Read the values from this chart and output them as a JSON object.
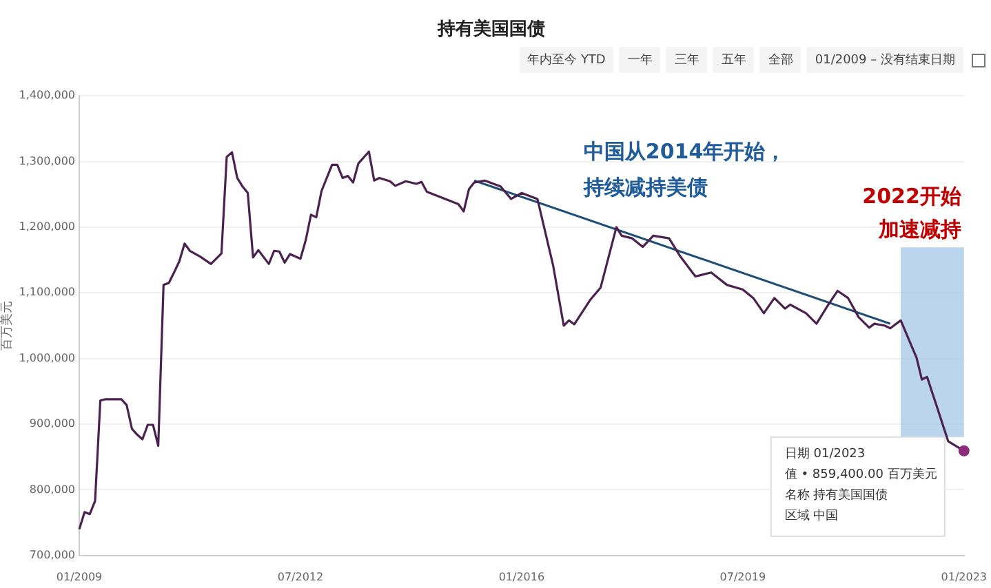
{
  "chart_data": {
    "type": "line",
    "title": "持有美国国债",
    "ylabel": "百万美元",
    "x": [
      "2009-01",
      "2009-02",
      "2009-03",
      "2009-04",
      "2009-05",
      "2009-06",
      "2009-09",
      "2009-10",
      "2009-11",
      "2009-12",
      "2010-01",
      "2010-02",
      "2010-03",
      "2010-04",
      "2010-05",
      "2010-06",
      "2010-07",
      "2010-08",
      "2010-09",
      "2010-10",
      "2010-12",
      "2011-02",
      "2011-04",
      "2011-05",
      "2011-06",
      "2011-07",
      "2011-08",
      "2011-09",
      "2011-10",
      "2011-11",
      "2012-01",
      "2012-02",
      "2012-03",
      "2012-04",
      "2012-05",
      "2012-07",
      "2012-08",
      "2012-09",
      "2012-10",
      "2012-11",
      "2013-01",
      "2013-02",
      "2013-03",
      "2013-04",
      "2013-05",
      "2013-06",
      "2013-08",
      "2013-09",
      "2013-10",
      "2013-12",
      "2014-01",
      "2014-03",
      "2014-05",
      "2014-06",
      "2014-07",
      "2015-01",
      "2015-02",
      "2015-03",
      "2015-04",
      "2015-06",
      "2015-09",
      "2015-11",
      "2016-01",
      "2016-04",
      "2016-07",
      "2016-09",
      "2016-10",
      "2016-11",
      "2017-02",
      "2017-04",
      "2017-07",
      "2017-08",
      "2017-10",
      "2017-12",
      "2018-02",
      "2018-05",
      "2018-07",
      "2018-10",
      "2019-01",
      "2019-04",
      "2019-07",
      "2019-09",
      "2019-11",
      "2020-01",
      "2020-03",
      "2020-04",
      "2020-07",
      "2020-09",
      "2020-11",
      "2021-01",
      "2021-03",
      "2021-05",
      "2021-07",
      "2021-08",
      "2021-10",
      "2021-11",
      "2022-01",
      "2022-04",
      "2022-05",
      "2022-06",
      "2022-08",
      "2022-10",
      "2023-01"
    ],
    "series": [
      {
        "color": "#4b2150",
        "values": [
          740000,
          766000,
          763000,
          783000,
          936000,
          938000,
          938000,
          929000,
          893000,
          884000,
          877000,
          899000,
          899000,
          867000,
          1112000,
          1115000,
          1131000,
          1148000,
          1175000,
          1164000,
          1155000,
          1144000,
          1160000,
          1307000,
          1314000,
          1275000,
          1262000,
          1252000,
          1154000,
          1165000,
          1144000,
          1164000,
          1163000,
          1146000,
          1159000,
          1152000,
          1180000,
          1219000,
          1215000,
          1255000,
          1295000,
          1295000,
          1275000,
          1278000,
          1268000,
          1297000,
          1315000,
          1271000,
          1275000,
          1270000,
          1263000,
          1270000,
          1266000,
          1269000,
          1254000,
          1235000,
          1224000,
          1258000,
          1268000,
          1271000,
          1262000,
          1243000,
          1252000,
          1243000,
          1141000,
          1050000,
          1058000,
          1052000,
          1089000,
          1108000,
          1200000,
          1187000,
          1183000,
          1170000,
          1187000,
          1183000,
          1157000,
          1125000,
          1131000,
          1112000,
          1105000,
          1092000,
          1069000,
          1092000,
          1076000,
          1082000,
          1069000,
          1053000,
          1079000,
          1103000,
          1092000,
          1063000,
          1047000,
          1053000,
          1050000,
          1046000,
          1058000,
          1001000,
          968000,
          972000,
          923000,
          874000,
          859400
        ]
      },
      {
        "type": "line",
        "color": "#1f4e79",
        "x": [
          "2015-04",
          "2021-11"
        ],
        "values": [
          1271000,
          1053000
        ]
      }
    ],
    "xlim": [
      "2009-01",
      "2023-01"
    ],
    "xticks": [
      {
        "value": "2009-01",
        "label": "01/2009"
      },
      {
        "value": "2012-07",
        "label": "07/2012"
      },
      {
        "value": "2016-01",
        "label": "01/2016"
      },
      {
        "value": "2019-07",
        "label": "07/2019"
      },
      {
        "value": "2023-01",
        "label": "01/2023"
      }
    ],
    "ylim": [
      700000,
      1400000
    ],
    "yticks": [
      {
        "value": 700000,
        "label": "700,000"
      },
      {
        "value": 800000,
        "label": "800,000"
      },
      {
        "value": 900000,
        "label": "900,000"
      },
      {
        "value": 1000000,
        "label": "1,000,000"
      },
      {
        "value": 1100000,
        "label": "1,100,000"
      },
      {
        "value": 1200000,
        "label": "1,200,000"
      },
      {
        "value": 1300000,
        "label": "1,300,000"
      },
      {
        "value": 1400000,
        "label": "1,400,000"
      }
    ],
    "bands": [
      {
        "axis": "x",
        "from": "2022-01",
        "to": "2023-01",
        "color": "#9dc3e6",
        "label": "2022开始加速减持"
      }
    ],
    "annotations": [
      "中国从2014年开始，持续减持美债",
      "年内至今 YTD",
      "一年",
      "三年",
      "五年",
      "全部",
      "01/2009 – 没有结束日期",
      "日期 01/2023",
      "值 • 859,400.00 百万美元",
      "名称 持有美国国债",
      "区域 中国"
    ],
    "grid": "y",
    "legend": false,
    "marker": "none",
    "line_style": "solid"
  }
}
